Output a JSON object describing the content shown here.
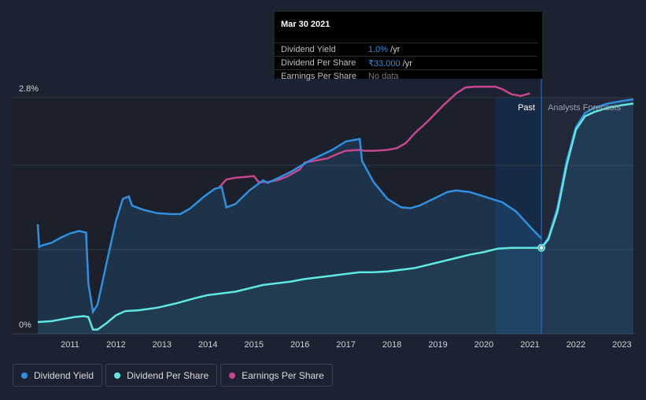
{
  "chart_data": {
    "type": "line",
    "y_axis": {
      "top_label": "2.8%",
      "bottom_label": "0%",
      "range": [
        0,
        2.8
      ]
    },
    "x_axis": {
      "range": [
        2010.3,
        2023.25
      ],
      "ticks": [
        "2011",
        "2012",
        "2013",
        "2014",
        "2015",
        "2016",
        "2017",
        "2018",
        "2019",
        "2020",
        "2021",
        "2022",
        "2023"
      ]
    },
    "past_label": "Past",
    "forecast_label": "Analysts Forecasts",
    "current_x": 2021.25,
    "shade_start_x": 2020.25,
    "series": [
      {
        "name": "Dividend Yield",
        "color": "#2f8fe0",
        "unit": "%",
        "x": [
          2010.3,
          2010.33,
          2010.4,
          2010.6,
          2010.8,
          2011.0,
          2011.2,
          2011.35,
          2011.4,
          2011.5,
          2011.6,
          2011.8,
          2012.0,
          2012.15,
          2012.28,
          2012.35,
          2012.6,
          2012.9,
          2013.2,
          2013.4,
          2013.6,
          2013.9,
          2014.15,
          2014.3,
          2014.4,
          2014.6,
          2014.9,
          2015.2,
          2015.3,
          2015.5,
          2015.8,
          2016.2,
          2016.7,
          2017.0,
          2017.3,
          2017.35,
          2017.6,
          2017.9,
          2018.2,
          2018.4,
          2018.6,
          2018.9,
          2019.2,
          2019.4,
          2019.7,
          2020.0,
          2020.4,
          2020.7,
          2021.0,
          2021.25
        ],
        "values": [
          1.3,
          1.03,
          1.05,
          1.08,
          1.14,
          1.19,
          1.22,
          1.2,
          0.6,
          0.26,
          0.35,
          0.85,
          1.34,
          1.6,
          1.63,
          1.52,
          1.47,
          1.43,
          1.42,
          1.42,
          1.48,
          1.62,
          1.72,
          1.74,
          1.5,
          1.54,
          1.7,
          1.82,
          1.79,
          1.84,
          1.92,
          2.05,
          2.18,
          2.28,
          2.31,
          2.05,
          1.8,
          1.6,
          1.5,
          1.49,
          1.52,
          1.6,
          1.68,
          1.7,
          1.68,
          1.63,
          1.56,
          1.45,
          1.27,
          1.13
        ]
      },
      {
        "name": "Dividend Per Share",
        "color": "#5ee8e0",
        "unit": "₹",
        "x": [
          2010.3,
          2010.6,
          2010.9,
          2011.1,
          2011.3,
          2011.4,
          2011.5,
          2011.6,
          2011.8,
          2012.0,
          2012.2,
          2012.5,
          2012.9,
          2013.3,
          2013.7,
          2014.0,
          2014.3,
          2014.6,
          2014.9,
          2015.2,
          2015.5,
          2015.8,
          2016.1,
          2016.4,
          2016.7,
          2017.0,
          2017.3,
          2017.6,
          2017.9,
          2018.2,
          2018.5,
          2018.8,
          2019.1,
          2019.4,
          2019.7,
          2020.0,
          2020.3,
          2020.6,
          2021.0,
          2021.25
        ],
        "values": [
          0.14,
          0.15,
          0.18,
          0.2,
          0.21,
          0.2,
          0.05,
          0.05,
          0.13,
          0.22,
          0.27,
          0.28,
          0.31,
          0.36,
          0.42,
          0.46,
          0.48,
          0.5,
          0.54,
          0.58,
          0.6,
          0.62,
          0.65,
          0.67,
          0.69,
          0.71,
          0.73,
          0.73,
          0.74,
          0.76,
          0.78,
          0.82,
          0.86,
          0.9,
          0.94,
          0.97,
          1.01,
          1.02,
          1.02,
          1.02
        ]
      },
      {
        "name": "Earnings Per Share",
        "color": "#c8468d",
        "unit": "₹",
        "x": [
          2014.25,
          2014.4,
          2014.6,
          2014.8,
          2015.0,
          2015.1,
          2015.3,
          2015.5,
          2015.7,
          2016.0,
          2016.1,
          2016.3,
          2016.6,
          2016.8,
          2017.0,
          2017.3,
          2017.4,
          2017.6,
          2017.9,
          2018.1,
          2018.3,
          2018.5,
          2018.8,
          2019.1,
          2019.4,
          2019.6,
          2019.8,
          2020.0,
          2020.25,
          2020.4,
          2020.6,
          2020.8,
          2021.0
        ],
        "values": [
          1.74,
          1.83,
          1.85,
          1.86,
          1.87,
          1.8,
          1.8,
          1.82,
          1.86,
          1.95,
          2.03,
          2.05,
          2.08,
          2.13,
          2.17,
          2.18,
          2.17,
          2.17,
          2.18,
          2.2,
          2.26,
          2.38,
          2.53,
          2.7,
          2.85,
          2.92,
          2.93,
          2.93,
          2.93,
          2.9,
          2.84,
          2.82,
          2.85
        ]
      },
      {
        "name": "Dividend Per Share (forecast)",
        "color": "#5ee8e0",
        "dashed": false,
        "x": [
          2021.25,
          2021.4,
          2021.6,
          2021.8,
          2022.0,
          2022.2,
          2022.4,
          2022.7,
          2023.0,
          2023.25
        ],
        "values": [
          1.02,
          1.12,
          1.45,
          2.0,
          2.42,
          2.58,
          2.63,
          2.68,
          2.71,
          2.73
        ]
      },
      {
        "name": "Dividend Yield (forecast)",
        "color": "#2f8fe0",
        "x": [
          2021.25,
          2021.4,
          2021.6,
          2021.8,
          2022.0,
          2022.2,
          2022.4,
          2022.7,
          2023.0,
          2023.25
        ],
        "values": [
          1.02,
          1.14,
          1.5,
          2.05,
          2.45,
          2.62,
          2.68,
          2.73,
          2.76,
          2.78
        ]
      }
    ]
  },
  "tooltip": {
    "date": "Mar 30 2021",
    "rows": [
      {
        "label": "Dividend Yield",
        "value": "1.0%",
        "unit": " /yr",
        "color": "#2f8fe0"
      },
      {
        "label": "Dividend Per Share",
        "value": "₹33.000",
        "unit": " /yr",
        "color": "#2f8fe0"
      },
      {
        "label": "Earnings Per Share",
        "value": "No data",
        "unit": "",
        "color": "#777777"
      }
    ]
  },
  "legend": [
    {
      "label": "Dividend Yield",
      "color": "#2f8fe0"
    },
    {
      "label": "Dividend Per Share",
      "color": "#5ee8e0"
    },
    {
      "label": "Earnings Per Share",
      "color": "#c8468d"
    }
  ]
}
